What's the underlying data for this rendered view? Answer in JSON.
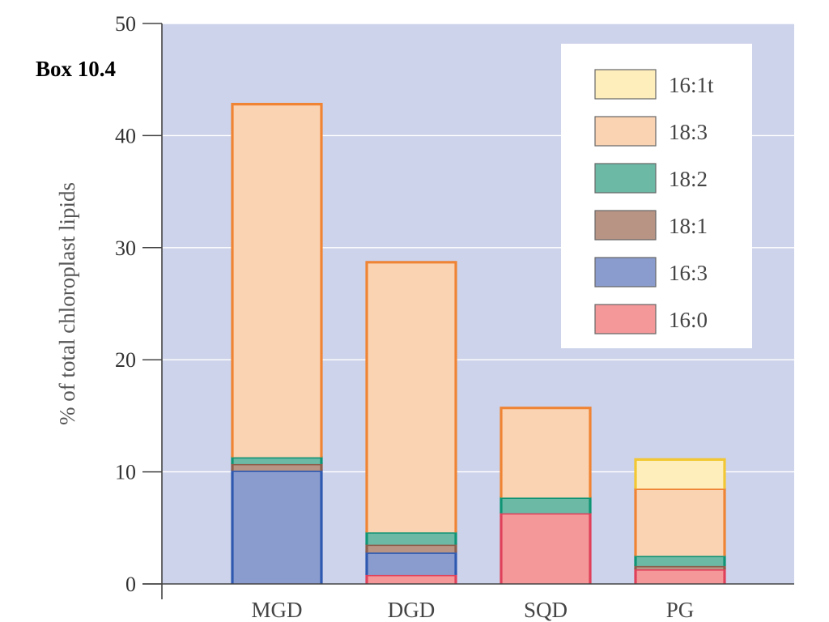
{
  "box_label": "Box 10.4",
  "chart_data": {
    "type": "bar",
    "stacked": true,
    "categories": [
      "MGD",
      "DGD",
      "SQD",
      "PG"
    ],
    "ylabel": "% of total chloroplast lipids",
    "ylim": [
      0,
      50
    ],
    "yticks": [
      "0",
      "10",
      "20",
      "30",
      "40",
      "50"
    ],
    "grid": true,
    "legend_position": "top-right",
    "series": [
      {
        "name": "16:0",
        "fill": "#f4989a",
        "edge": "#e0415a",
        "values": [
          0,
          0.8,
          6.3,
          1.3
        ]
      },
      {
        "name": "16:3",
        "fill": "#8a9bcd",
        "edge": "#2f59b0",
        "values": [
          10.1,
          2.0,
          0,
          0
        ]
      },
      {
        "name": "18:1",
        "fill": "#b89484",
        "edge": "#8b5e4c",
        "values": [
          0.6,
          0.7,
          0,
          0.3
        ]
      },
      {
        "name": "18:2",
        "fill": "#6cb9a6",
        "edge": "#0f9474",
        "values": [
          0.6,
          1.1,
          1.4,
          0.9
        ]
      },
      {
        "name": "18:3",
        "fill": "#fad3b3",
        "edge": "#ef8434",
        "values": [
          31.5,
          24.1,
          8.0,
          6.0
        ]
      },
      {
        "name": "16:1t",
        "fill": "#fdeebb",
        "edge": "#f2c733",
        "values": [
          0,
          0,
          0,
          2.6
        ]
      }
    ],
    "legend_order": [
      "16:1t",
      "18:3",
      "18:2",
      "18:1",
      "16:3",
      "16:0"
    ]
  },
  "colors": {
    "plot_background": "#cdd3ea",
    "gridline": "#ffffff",
    "axis": "#444444"
  }
}
